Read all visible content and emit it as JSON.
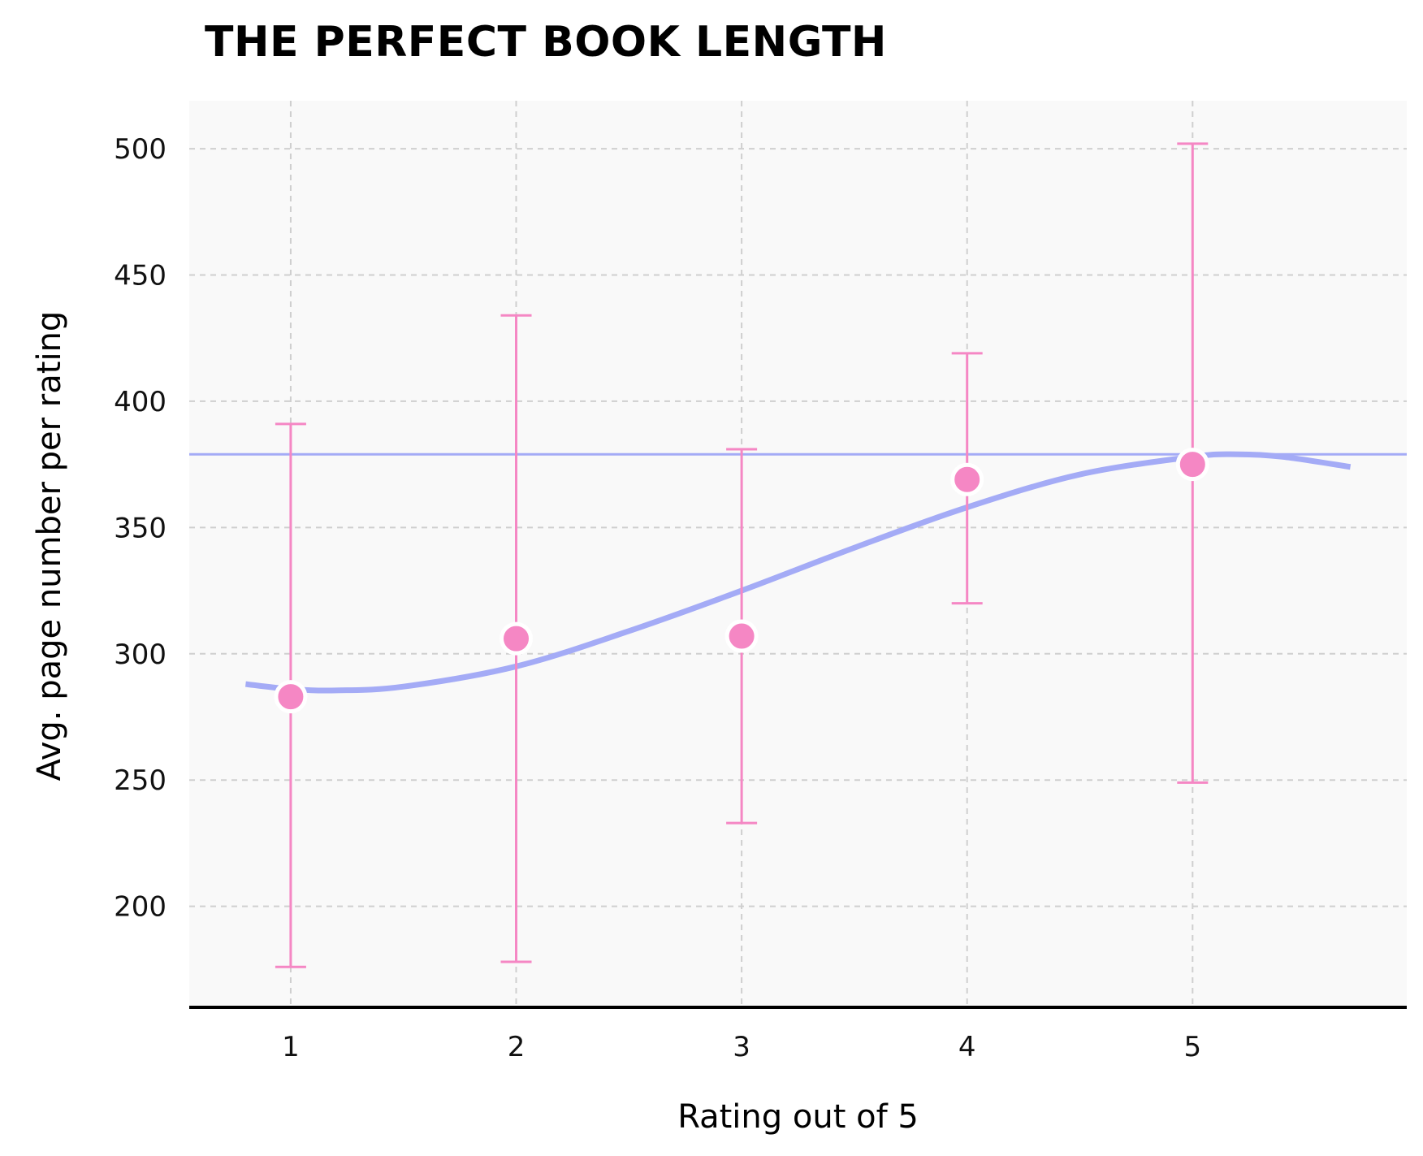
{
  "chart_data": {
    "type": "scatter",
    "title": "THE PERFECT BOOK LENGTH",
    "xlabel": "Rating out of 5",
    "ylabel": "Avg. page number per rating",
    "x": [
      1,
      2,
      3,
      4,
      5
    ],
    "x_ticks": [
      "1",
      "2",
      "3",
      "4",
      "5"
    ],
    "xlim": [
      0.55,
      5.95
    ],
    "ylim": [
      160,
      519
    ],
    "y_ticks": [
      200,
      250,
      300,
      350,
      400,
      450,
      500
    ],
    "grid": true,
    "series": [
      {
        "values": [
          283,
          306,
          307,
          369,
          375
        ],
        "error_upper": [
          391,
          434,
          381,
          419,
          502
        ],
        "error_lower": [
          176,
          178,
          233,
          320,
          249
        ],
        "color": "#f587c4"
      }
    ],
    "trend_curve": {
      "x": [
        0.8,
        1.0,
        1.2,
        1.5,
        2.0,
        2.5,
        3.0,
        3.5,
        4.0,
        4.5,
        5.0,
        5.2,
        5.4,
        5.7
      ],
      "y": [
        288,
        286,
        285.5,
        287,
        295,
        309,
        325,
        342,
        358,
        371,
        378,
        379,
        378,
        374
      ],
      "color": "#a4abf6"
    },
    "reference_line": {
      "y": 379,
      "color": "#a4abf6"
    }
  }
}
